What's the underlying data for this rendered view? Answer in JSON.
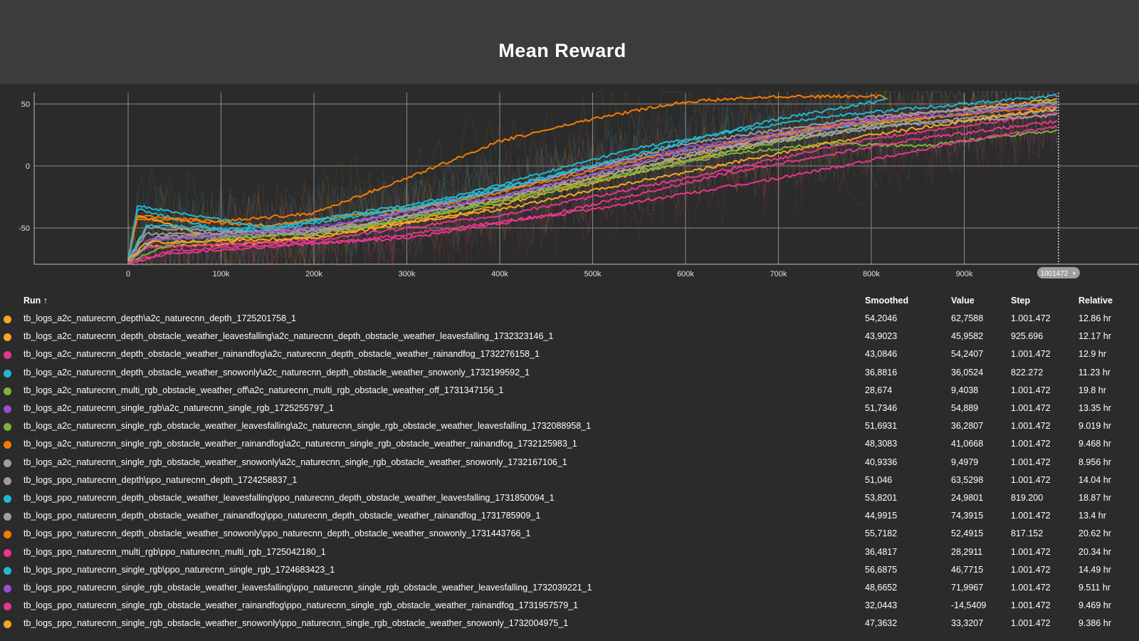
{
  "title": "Mean Reward",
  "chart_data": {
    "type": "line",
    "title": "Mean Reward",
    "x_ticks": [
      "0",
      "100k",
      "200k",
      "300k",
      "400k",
      "500k",
      "600k",
      "700k",
      "800k",
      "900k"
    ],
    "y_ticks": [
      "50",
      "0",
      "-50"
    ],
    "xlim": [
      0,
      1001472
    ],
    "ylim": [
      -80,
      60
    ],
    "cursor_label": "1001472",
    "grid": true,
    "series": [
      {
        "name": "tb_logs_a2c_naturecnn_depth\\a2c_naturecnn_depth_1725201758_1",
        "color": "#f5a623",
        "points": [
          [
            0,
            -75
          ],
          [
            10000,
            -40
          ],
          [
            100000,
            -60
          ],
          [
            300000,
            -45
          ],
          [
            500000,
            -10
          ],
          [
            700000,
            25
          ],
          [
            850000,
            42
          ],
          [
            1001472,
            54
          ]
        ]
      },
      {
        "name": "tb_logs_a2c_naturecnn_depth_obstacle_weather_leavesfalling\\a2c_naturecnn_depth_obstacle_weather_leavesfalling_1732323146_1",
        "color": "#f5a623",
        "points": [
          [
            0,
            -78
          ],
          [
            20000,
            -65
          ],
          [
            150000,
            -62
          ],
          [
            350000,
            -40
          ],
          [
            550000,
            -5
          ],
          [
            750000,
            30
          ],
          [
            925696,
            44
          ]
        ]
      },
      {
        "name": "tb_logs_a2c_naturecnn_depth_obstacle_weather_rainandfog\\a2c_naturecnn_depth_obstacle_weather_rainandfog_1732276158_1",
        "color": "#e8358d",
        "points": [
          [
            0,
            -76
          ],
          [
            20000,
            -66
          ],
          [
            200000,
            -60
          ],
          [
            400000,
            -40
          ],
          [
            600000,
            -10
          ],
          [
            800000,
            22
          ],
          [
            1001472,
            43
          ]
        ]
      },
      {
        "name": "tb_logs_a2c_naturecnn_depth_obstacle_weather_snowonly\\a2c_naturecnn_depth_obstacle_weather_snowonly_1732199592_1",
        "color": "#22b8cf",
        "points": [
          [
            0,
            -75
          ],
          [
            10000,
            -35
          ],
          [
            100000,
            -52
          ],
          [
            300000,
            -35
          ],
          [
            500000,
            0
          ],
          [
            700000,
            25
          ],
          [
            822272,
            37
          ]
        ]
      },
      {
        "name": "tb_logs_a2c_naturecnn_multi_rgb_obstacle_weather_off\\a2c_naturecnn_multi_rgb_obstacle_weather_off_1731347156_1",
        "color": "#7cb342",
        "points": [
          [
            0,
            -77
          ],
          [
            50000,
            -62
          ],
          [
            250000,
            -50
          ],
          [
            450000,
            -20
          ],
          [
            650000,
            10
          ],
          [
            750000,
            18
          ],
          [
            850000,
            16
          ],
          [
            1001472,
            29
          ]
        ]
      },
      {
        "name": "tb_logs_a2c_naturecnn_single_rgb\\a2c_naturecnn_single_rgb_1725255797_1",
        "color": "#9c4dcc",
        "points": [
          [
            0,
            -76
          ],
          [
            30000,
            -60
          ],
          [
            200000,
            -52
          ],
          [
            400000,
            -20
          ],
          [
            600000,
            15
          ],
          [
            800000,
            38
          ],
          [
            1001472,
            52
          ]
        ]
      },
      {
        "name": "tb_logs_a2c_naturecnn_single_rgb_obstacle_weather_leavesfalling\\a2c_naturecnn_single_rgb_obstacle_weather_leavesfalling_1732088958_1",
        "color": "#7cb342",
        "points": [
          [
            0,
            -77
          ],
          [
            30000,
            -58
          ],
          [
            200000,
            -55
          ],
          [
            400000,
            -30
          ],
          [
            600000,
            5
          ],
          [
            800000,
            33
          ],
          [
            1001472,
            52
          ]
        ]
      },
      {
        "name": "tb_logs_a2c_naturecnn_single_rgb_obstacle_weather_rainandfog\\a2c_naturecnn_single_rgb_obstacle_weather_rainandfog_1732125983_1",
        "color": "#f57c00",
        "points": [
          [
            0,
            -75
          ],
          [
            10000,
            -42
          ],
          [
            150000,
            -48
          ],
          [
            350000,
            -30
          ],
          [
            550000,
            5
          ],
          [
            750000,
            32
          ],
          [
            1001472,
            48
          ]
        ]
      },
      {
        "name": "tb_logs_a2c_naturecnn_single_rgb_obstacle_weather_snowonly\\a2c_naturecnn_single_rgb_obstacle_weather_snowonly_1732167106_1",
        "color": "#9e9e9e",
        "points": [
          [
            0,
            -76
          ],
          [
            20000,
            -50
          ],
          [
            200000,
            -55
          ],
          [
            400000,
            -25
          ],
          [
            600000,
            10
          ],
          [
            800000,
            32
          ],
          [
            1001472,
            41
          ]
        ]
      },
      {
        "name": "tb_logs_ppo_naturecnn_depth\\ppo_naturecnn_depth_1724258837_1",
        "color": "#9e9e9e",
        "points": [
          [
            0,
            -76
          ],
          [
            20000,
            -55
          ],
          [
            200000,
            -52
          ],
          [
            400000,
            -20
          ],
          [
            600000,
            18
          ],
          [
            800000,
            40
          ],
          [
            1001472,
            51
          ]
        ]
      },
      {
        "name": "tb_logs_ppo_naturecnn_depth_obstacle_weather_leavesfalling\\ppo_naturecnn_depth_obstacle_weather_leavesfalling_1731850094_1",
        "color": "#22b8cf",
        "points": [
          [
            0,
            -76
          ],
          [
            20000,
            -48
          ],
          [
            150000,
            -52
          ],
          [
            350000,
            -28
          ],
          [
            550000,
            10
          ],
          [
            700000,
            38
          ],
          [
            819200,
            54
          ]
        ]
      },
      {
        "name": "tb_logs_ppo_naturecnn_depth_obstacle_weather_rainandfog\\ppo_naturecnn_depth_obstacle_weather_rainandfog_1731785909_1",
        "color": "#9e9e9e",
        "points": [
          [
            0,
            -77
          ],
          [
            30000,
            -58
          ],
          [
            250000,
            -48
          ],
          [
            450000,
            -18
          ],
          [
            650000,
            15
          ],
          [
            850000,
            35
          ],
          [
            1001472,
            45
          ]
        ]
      },
      {
        "name": "tb_logs_ppo_naturecnn_depth_obstacle_weather_snowonly\\ppo_naturecnn_depth_obstacle_weather_snowonly_1731443766_1",
        "color": "#f57c00",
        "points": [
          [
            0,
            -75
          ],
          [
            10000,
            -40
          ],
          [
            100000,
            -45
          ],
          [
            200000,
            -38
          ],
          [
            300000,
            -10
          ],
          [
            400000,
            20
          ],
          [
            500000,
            38
          ],
          [
            600000,
            52
          ],
          [
            700000,
            56
          ],
          [
            817152,
            56
          ]
        ]
      },
      {
        "name": "tb_logs_ppo_naturecnn_multi_rgb\\ppo_naturecnn_multi_rgb_1725042180_1",
        "color": "#e8358d",
        "points": [
          [
            0,
            -78
          ],
          [
            50000,
            -68
          ],
          [
            250000,
            -60
          ],
          [
            450000,
            -40
          ],
          [
            650000,
            -5
          ],
          [
            850000,
            22
          ],
          [
            1001472,
            36
          ]
        ]
      },
      {
        "name": "tb_logs_ppo_naturecnn_single_rgb\\ppo_naturecnn_single_rgb_1724683423_1",
        "color": "#22b8cf",
        "points": [
          [
            0,
            -76
          ],
          [
            10000,
            -32
          ],
          [
            150000,
            -50
          ],
          [
            350000,
            -25
          ],
          [
            550000,
            15
          ],
          [
            750000,
            40
          ],
          [
            1001472,
            57
          ]
        ]
      },
      {
        "name": "tb_logs_ppo_naturecnn_single_rgb_obstacle_weather_leavesfalling\\ppo_naturecnn_single_rgb_obstacle_weather_leavesfalling_1732039221_1",
        "color": "#9c4dcc",
        "points": [
          [
            0,
            -76
          ],
          [
            20000,
            -60
          ],
          [
            200000,
            -50
          ],
          [
            400000,
            -25
          ],
          [
            600000,
            12
          ],
          [
            800000,
            36
          ],
          [
            1001472,
            49
          ]
        ]
      },
      {
        "name": "tb_logs_ppo_naturecnn_single_rgb_obstacle_weather_rainandfog\\ppo_naturecnn_single_rgb_obstacle_weather_rainandfog_1731957579_1",
        "color": "#e8358d",
        "points": [
          [
            0,
            -78
          ],
          [
            50000,
            -70
          ],
          [
            300000,
            -58
          ],
          [
            500000,
            -35
          ],
          [
            700000,
            -10
          ],
          [
            900000,
            20
          ],
          [
            1001472,
            32
          ]
        ]
      },
      {
        "name": "tb_logs_ppo_naturecnn_single_rgb_obstacle_weather_snowonly\\ppo_naturecnn_single_rgb_obstacle_weather_snowonly_1732004975_1",
        "color": "#f5a623",
        "points": [
          [
            0,
            -76
          ],
          [
            20000,
            -62
          ],
          [
            200000,
            -58
          ],
          [
            400000,
            -35
          ],
          [
            600000,
            -5
          ],
          [
            800000,
            25
          ],
          [
            1001472,
            47
          ]
        ]
      }
    ]
  },
  "table": {
    "headers": {
      "run": "Run ↑",
      "smoothed": "Smoothed",
      "value": "Value",
      "step": "Step",
      "relative": "Relative"
    },
    "rows": [
      {
        "run": "tb_logs_a2c_naturecnn_depth\\a2c_naturecnn_depth_1725201758_1",
        "smoothed": "54,2046",
        "value": "62,7588",
        "step": "1.001.472",
        "relative": "12.86 hr",
        "color": "#f5a623"
      },
      {
        "run": "tb_logs_a2c_naturecnn_depth_obstacle_weather_leavesfalling\\a2c_naturecnn_depth_obstacle_weather_leavesfalling_1732323146_1",
        "smoothed": "43,9023",
        "value": "45,9582",
        "step": "925.696",
        "relative": "12.17 hr",
        "color": "#f5a623"
      },
      {
        "run": "tb_logs_a2c_naturecnn_depth_obstacle_weather_rainandfog\\a2c_naturecnn_depth_obstacle_weather_rainandfog_1732276158_1",
        "smoothed": "43,0846",
        "value": "54,2407",
        "step": "1.001.472",
        "relative": "12.9 hr",
        "color": "#e8358d"
      },
      {
        "run": "tb_logs_a2c_naturecnn_depth_obstacle_weather_snowonly\\a2c_naturecnn_depth_obstacle_weather_snowonly_1732199592_1",
        "smoothed": "36,8816",
        "value": "36,0524",
        "step": "822.272",
        "relative": "11.23 hr",
        "color": "#22b8cf"
      },
      {
        "run": "tb_logs_a2c_naturecnn_multi_rgb_obstacle_weather_off\\a2c_naturecnn_multi_rgb_obstacle_weather_off_1731347156_1",
        "smoothed": "28,674",
        "value": "9,4038",
        "step": "1.001.472",
        "relative": "19.8 hr",
        "color": "#7cb342"
      },
      {
        "run": "tb_logs_a2c_naturecnn_single_rgb\\a2c_naturecnn_single_rgb_1725255797_1",
        "smoothed": "51,7346",
        "value": "54,889",
        "step": "1.001.472",
        "relative": "13.35 hr",
        "color": "#9c4dcc"
      },
      {
        "run": "tb_logs_a2c_naturecnn_single_rgb_obstacle_weather_leavesfalling\\a2c_naturecnn_single_rgb_obstacle_weather_leavesfalling_1732088958_1",
        "smoothed": "51,6931",
        "value": "36,2807",
        "step": "1.001.472",
        "relative": "9.019 hr",
        "color": "#7cb342"
      },
      {
        "run": "tb_logs_a2c_naturecnn_single_rgb_obstacle_weather_rainandfog\\a2c_naturecnn_single_rgb_obstacle_weather_rainandfog_1732125983_1",
        "smoothed": "48,3083",
        "value": "41,0668",
        "step": "1.001.472",
        "relative": "9.468 hr",
        "color": "#f57c00"
      },
      {
        "run": "tb_logs_a2c_naturecnn_single_rgb_obstacle_weather_snowonly\\a2c_naturecnn_single_rgb_obstacle_weather_snowonly_1732167106_1",
        "smoothed": "40,9336",
        "value": "9,4979",
        "step": "1.001.472",
        "relative": "8.956 hr",
        "color": "#9e9e9e"
      },
      {
        "run": "tb_logs_ppo_naturecnn_depth\\ppo_naturecnn_depth_1724258837_1",
        "smoothed": "51,046",
        "value": "63,5298",
        "step": "1.001.472",
        "relative": "14.04 hr",
        "color": "#9e9e9e"
      },
      {
        "run": "tb_logs_ppo_naturecnn_depth_obstacle_weather_leavesfalling\\ppo_naturecnn_depth_obstacle_weather_leavesfalling_1731850094_1",
        "smoothed": "53,8201",
        "value": "24,9801",
        "step": "819.200",
        "relative": "18.87 hr",
        "color": "#22b8cf"
      },
      {
        "run": "tb_logs_ppo_naturecnn_depth_obstacle_weather_rainandfog\\ppo_naturecnn_depth_obstacle_weather_rainandfog_1731785909_1",
        "smoothed": "44,9915",
        "value": "74,3915",
        "step": "1.001.472",
        "relative": "13.4 hr",
        "color": "#9e9e9e"
      },
      {
        "run": "tb_logs_ppo_naturecnn_depth_obstacle_weather_snowonly\\ppo_naturecnn_depth_obstacle_weather_snowonly_1731443766_1",
        "smoothed": "55,7182",
        "value": "52,4915",
        "step": "817.152",
        "relative": "20.62 hr",
        "color": "#f57c00"
      },
      {
        "run": "tb_logs_ppo_naturecnn_multi_rgb\\ppo_naturecnn_multi_rgb_1725042180_1",
        "smoothed": "36,4817",
        "value": "28,2911",
        "step": "1.001.472",
        "relative": "20.34 hr",
        "color": "#e8358d"
      },
      {
        "run": "tb_logs_ppo_naturecnn_single_rgb\\ppo_naturecnn_single_rgb_1724683423_1",
        "smoothed": "56,6875",
        "value": "46,7715",
        "step": "1.001.472",
        "relative": "14.49 hr",
        "color": "#22b8cf"
      },
      {
        "run": "tb_logs_ppo_naturecnn_single_rgb_obstacle_weather_leavesfalling\\ppo_naturecnn_single_rgb_obstacle_weather_leavesfalling_1732039221_1",
        "smoothed": "48,6652",
        "value": "71,9967",
        "step": "1.001.472",
        "relative": "9.511 hr",
        "color": "#9c4dcc"
      },
      {
        "run": "tb_logs_ppo_naturecnn_single_rgb_obstacle_weather_rainandfog\\ppo_naturecnn_single_rgb_obstacle_weather_rainandfog_1731957579_1",
        "smoothed": "32,0443",
        "value": "-14,5409",
        "step": "1.001.472",
        "relative": "9.469 hr",
        "color": "#e8358d"
      },
      {
        "run": "tb_logs_ppo_naturecnn_single_rgb_obstacle_weather_snowonly\\ppo_naturecnn_single_rgb_obstacle_weather_snowonly_1732004975_1",
        "smoothed": "47,3632",
        "value": "33,3207",
        "step": "1.001.472",
        "relative": "9.386 hr",
        "color": "#f5a623"
      }
    ]
  }
}
